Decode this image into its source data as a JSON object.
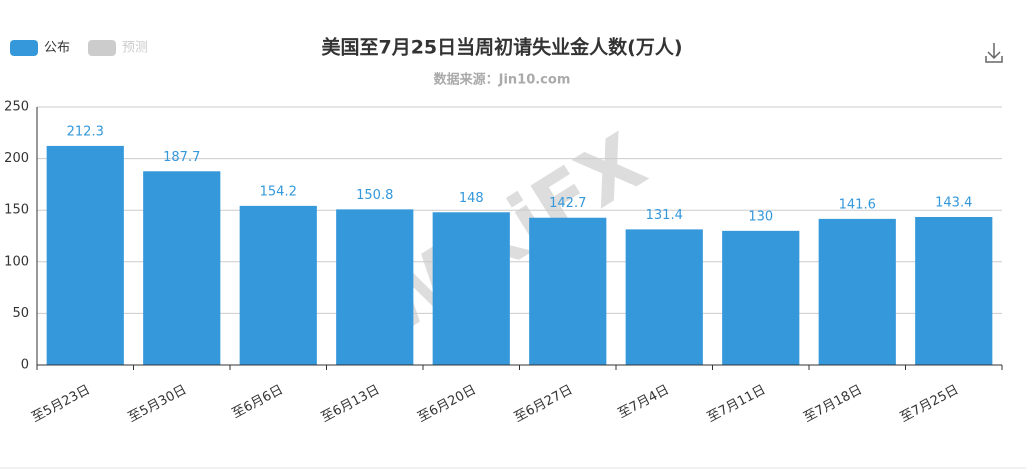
{
  "chart_data": {
    "type": "bar",
    "title": "美国至7月25日当周初请失业金人数(万人)",
    "subtitle": "数据来源：Jin10.com",
    "watermark": "WikiFX",
    "categories": [
      "至5月23日",
      "至5月30日",
      "至6月6日",
      "至6月13日",
      "至6月20日",
      "至6月27日",
      "至7月4日",
      "至7月11日",
      "至7月18日",
      "至7月25日"
    ],
    "series": [
      {
        "name": "公布",
        "color": "#3498db",
        "values": [
          212.3,
          187.7,
          154.2,
          150.8,
          148,
          142.7,
          131.4,
          130,
          141.6,
          143.4
        ]
      },
      {
        "name": "预测",
        "color": "#cccccc",
        "values": [
          null,
          null,
          null,
          null,
          null,
          null,
          null,
          null,
          null,
          null
        ]
      }
    ],
    "ylim": [
      0,
      250
    ],
    "yticks": [
      0,
      50,
      100,
      150,
      200,
      250
    ],
    "grid": true
  }
}
